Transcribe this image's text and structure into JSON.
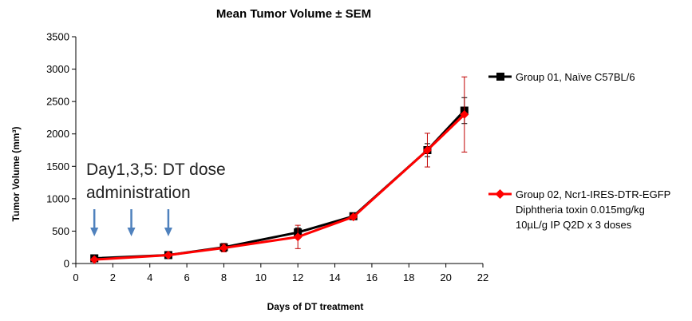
{
  "chart_data": {
    "type": "line",
    "title": "Mean Tumor Volume ± SEM",
    "xlabel": "Days of DT treatment",
    "ylabel": "Tumor Volume (mm³)",
    "xlim": [
      0,
      22
    ],
    "ylim": [
      0,
      3500
    ],
    "xticks": [
      0,
      2,
      4,
      6,
      8,
      10,
      12,
      14,
      16,
      18,
      20,
      22
    ],
    "yticks": [
      0,
      500,
      1000,
      1500,
      2000,
      2500,
      3000,
      3500
    ],
    "grid": false,
    "series": [
      {
        "name": "Group 01, Naïve C57BL/6",
        "color": "#000000",
        "marker": "square",
        "x": [
          1,
          5,
          8,
          12,
          15,
          19,
          21
        ],
        "y": [
          80,
          130,
          250,
          480,
          730,
          1750,
          2360
        ],
        "err": [
          20,
          20,
          60,
          70,
          40,
          100,
          200
        ]
      },
      {
        "name": "Group 02, Ncr1-IRES-DTR-EGFP",
        "color": "#ff0000",
        "errcolor": "#c00000",
        "marker": "diamond",
        "x": [
          1,
          5,
          8,
          12,
          15,
          19,
          21
        ],
        "y": [
          60,
          130,
          240,
          410,
          720,
          1750,
          2300
        ],
        "err": [
          15,
          20,
          60,
          180,
          30,
          260,
          580
        ]
      }
    ],
    "legend_extra_lines": [
      "Diphtheria toxin    0.015mg/kg",
      "10µL/g   IP   Q2D x 3 doses"
    ],
    "annotation": {
      "lines": [
        "Day1,3,5: DT dose",
        "administration"
      ],
      "arrow_days": [
        1,
        3,
        5
      ],
      "arrow_color": "#4f81bd"
    }
  }
}
